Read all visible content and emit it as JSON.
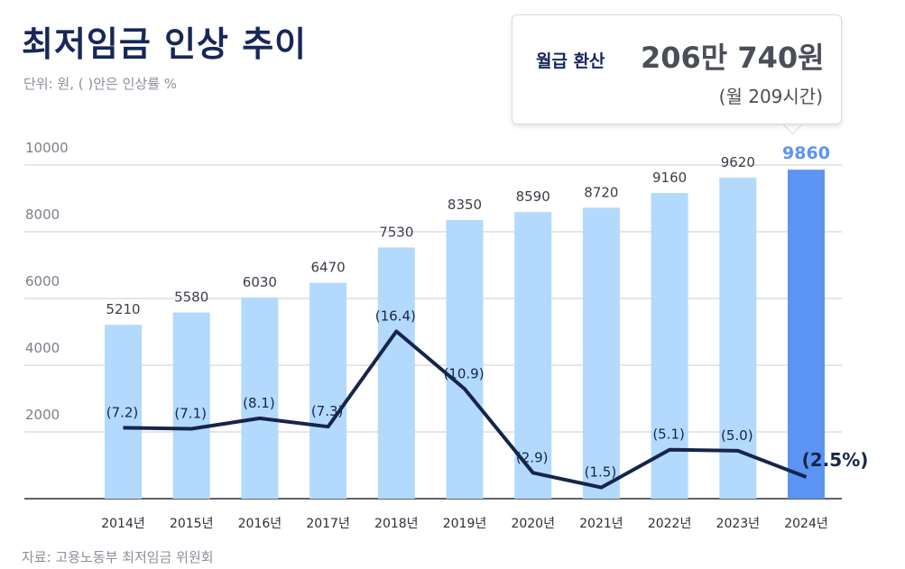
{
  "title": "최저임금 인상 추이",
  "unit_note": "단위: 원, ( )안은 인상률 %",
  "callout": {
    "label": "월급 환산",
    "value": "206만 740원",
    "sub": "(월 209시간)"
  },
  "source": "자료: 고용노동부 최저임금 위원회",
  "chart_data": {
    "type": "bar",
    "categories": [
      "2014년",
      "2015년",
      "2016년",
      "2017년",
      "2018년",
      "2019년",
      "2020년",
      "2021년",
      "2022년",
      "2023년",
      "2024년"
    ],
    "series": [
      {
        "values": [
          5210,
          5580,
          6030,
          6470,
          7530,
          8350,
          8590,
          8720,
          9160,
          9620,
          9860
        ]
      },
      {
        "type": "line",
        "values": [
          7.2,
          7.1,
          8.1,
          7.3,
          16.4,
          10.9,
          2.9,
          1.5,
          5.1,
          5.0,
          2.5
        ],
        "labels": [
          "(7.2)",
          "(7.1)",
          "(8.1)",
          "(7.3)",
          "(16.4)",
          "(10.9)",
          "(2.9)",
          "(1.5)",
          "(5.1)",
          "(5.0)",
          "(2.5%)"
        ]
      }
    ],
    "ylim": [
      0,
      10000
    ],
    "yticks": [
      2000,
      4000,
      6000,
      8000,
      10000
    ],
    "grid": true,
    "colors": {
      "bar": "#b3d9fd",
      "bar_highlight": "#5b94f3",
      "highlight_label": "#5b94f3",
      "line": "#16254a",
      "grid": "#c9ccd2",
      "axis_text": "#7b808a",
      "value_text": "#3a3f47"
    }
  }
}
